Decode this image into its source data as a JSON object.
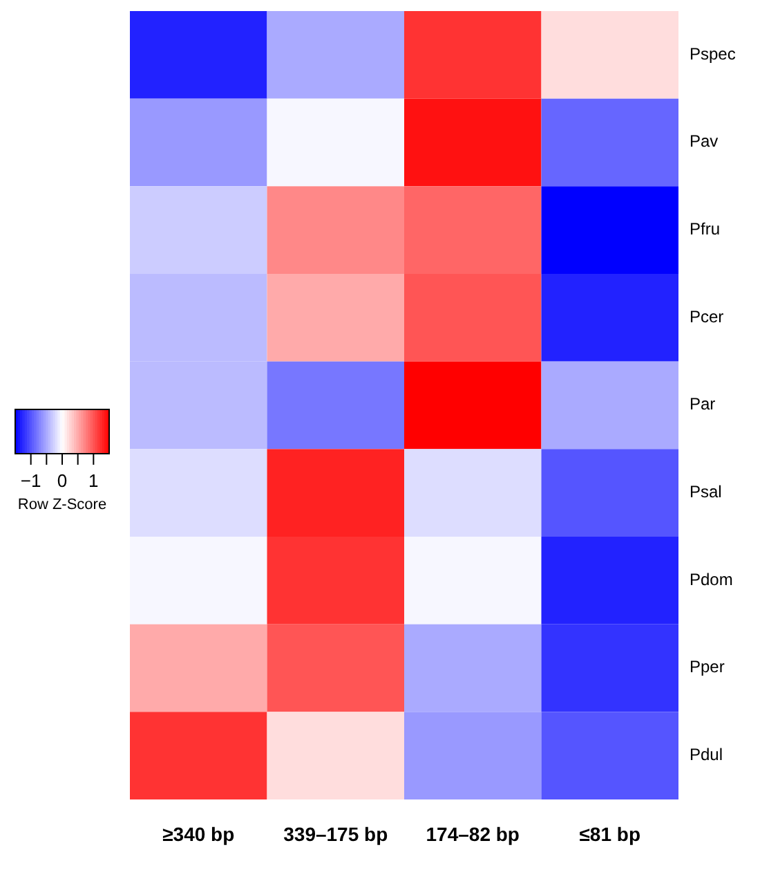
{
  "chart_data": {
    "type": "heatmap",
    "clabel": "Row Z-Score",
    "categories": [
      "≥340 bp",
      "339–175 bp",
      "174–82 bp",
      "≤81 bp"
    ],
    "y_categories": [
      "Pspec",
      "Pav",
      "Pfru",
      "Pcer",
      "Par",
      "Psal",
      "Pdom",
      "Pper",
      "Pdul"
    ],
    "cells": [
      [
        -1.3,
        -0.5,
        1.2,
        0.2
      ],
      [
        -0.6,
        -0.05,
        1.4,
        -0.9
      ],
      [
        -0.3,
        0.7,
        0.9,
        -1.5
      ],
      [
        -0.4,
        0.5,
        1.0,
        -1.3
      ],
      [
        -0.4,
        -0.8,
        1.5,
        -0.5
      ],
      [
        -0.2,
        1.3,
        -0.2,
        -1.0
      ],
      [
        -0.05,
        1.2,
        -0.05,
        -1.3
      ],
      [
        0.5,
        1.0,
        -0.5,
        -1.2
      ],
      [
        1.2,
        0.2,
        -0.6,
        -1.0
      ]
    ],
    "clim": [
      -1.5,
      1.5
    ],
    "cticks": [
      {
        "value": -1,
        "label": "−1"
      },
      {
        "value": -0.5,
        "label": null
      },
      {
        "value": 0,
        "label": "0"
      },
      {
        "value": 0.5,
        "label": null
      },
      {
        "value": 1,
        "label": "1"
      }
    ]
  }
}
